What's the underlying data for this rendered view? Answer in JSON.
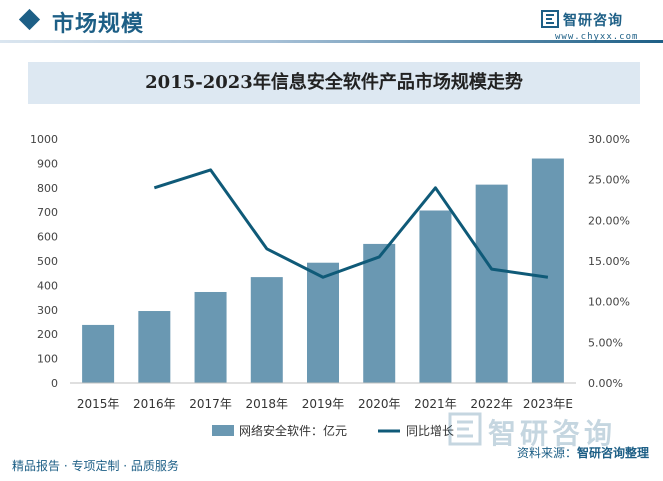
{
  "header": {
    "section_title": "市场规模",
    "brand_name": "智研咨询",
    "brand_url": "www.chyxx.com"
  },
  "footer": {
    "left_text": "精品报告 · 专项定制 · 品质服务",
    "source_prefix": "资料来源：",
    "source_name": "智研咨询整理",
    "watermark": "智研咨询"
  },
  "colors": {
    "brand": "#1d5f86",
    "bar": "#6a98b2",
    "line": "#0f5a78",
    "title_bg": "#dde8f2"
  },
  "chart_data": {
    "type": "bar",
    "title": "2015-2023年信息安全软件产品市场规模走势",
    "categories": [
      "2015年",
      "2016年",
      "2017年",
      "2018年",
      "2019年",
      "2020年",
      "2021年",
      "2022年",
      "2023年E"
    ],
    "series": [
      {
        "name": "网络安全软件：亿元",
        "type": "bar",
        "axis": "left",
        "values": [
          238,
          295,
          373,
          434,
          493,
          570,
          707,
          813,
          920
        ]
      },
      {
        "name": "同比增长",
        "type": "line",
        "axis": "right",
        "values": [
          null,
          0.24,
          0.262,
          0.165,
          0.13,
          0.155,
          0.24,
          0.14,
          0.13
        ]
      }
    ],
    "y_left": {
      "min": 0,
      "max": 1000,
      "ticks": [
        "0",
        "100",
        "200",
        "300",
        "400",
        "500",
        "600",
        "700",
        "800",
        "900",
        "1000"
      ]
    },
    "y_right": {
      "min": 0,
      "max": 0.3,
      "ticks": [
        "0.00%",
        "5.00%",
        "10.00%",
        "15.00%",
        "20.00%",
        "25.00%",
        "30.00%"
      ]
    },
    "grid": false,
    "legend_position": "bottom"
  }
}
